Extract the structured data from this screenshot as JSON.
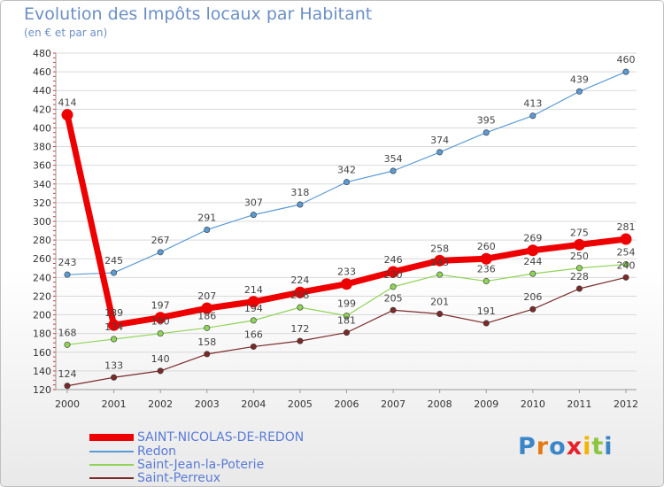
{
  "title": "Evolution des Impôts locaux par Habitant",
  "subtitle": "(en € et par an)",
  "brand": {
    "letters": [
      "P",
      "r",
      "o",
      "x",
      "i",
      "t",
      "i"
    ],
    "colors": [
      "#3a86c8",
      "#e57a12",
      "#3a86c8",
      "#e8202a",
      "#f2b400",
      "#8cc63f",
      "#3a86c8"
    ]
  },
  "chart_data": {
    "type": "line",
    "title": "Evolution des Impôts locaux par Habitant",
    "subtitle": "(en € et par an)",
    "xlabel": "",
    "ylabel": "",
    "x": [
      "2000",
      "2001",
      "2002",
      "2003",
      "2004",
      "2005",
      "2006",
      "2007",
      "2008",
      "2009",
      "2010",
      "2011",
      "2012"
    ],
    "ylim": [
      120,
      480
    ],
    "yticks": [
      120,
      140,
      160,
      180,
      200,
      220,
      240,
      260,
      280,
      300,
      320,
      340,
      360,
      380,
      400,
      420,
      440,
      460,
      480
    ],
    "grid": "horizontal",
    "legend_position": "bottom-left",
    "series": [
      {
        "name": "SAINT-NICOLAS-DE-REDON",
        "color": "#ee0000",
        "values": [
          414,
          189,
          197,
          207,
          214,
          224,
          233,
          246,
          258,
          260,
          269,
          275,
          281
        ]
      },
      {
        "name": "Redon",
        "color": "#5b9bd5",
        "values": [
          243,
          245,
          267,
          291,
          307,
          318,
          342,
          354,
          374,
          395,
          413,
          439,
          460
        ]
      },
      {
        "name": "Saint-Jean-la-Poterie",
        "color": "#8fd456",
        "values": [
          168,
          174,
          180,
          186,
          194,
          208,
          199,
          230,
          243,
          236,
          244,
          250,
          254
        ]
      },
      {
        "name": "Saint-Perreux",
        "color": "#7b2a2a",
        "values": [
          124,
          133,
          140,
          158,
          166,
          172,
          181,
          205,
          201,
          191,
          206,
          228,
          240
        ]
      }
    ]
  }
}
